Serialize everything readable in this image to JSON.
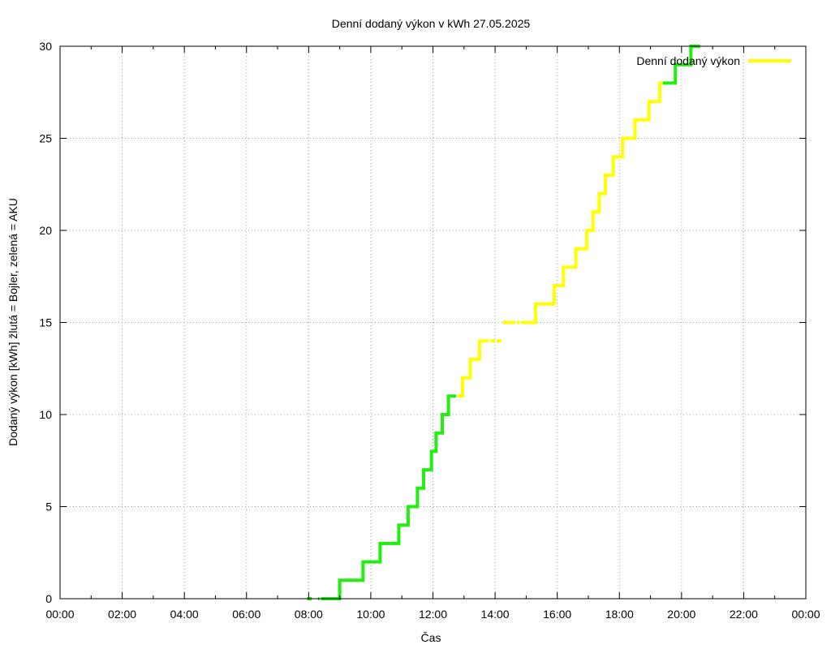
{
  "chart_data": {
    "type": "line",
    "title": "Denní dodaný výkon v kWh 27.05.2025",
    "xlabel": "Čas",
    "ylabel": "Dodaný výkon [kWh]  žlutá = Bojler, zelená = AKU",
    "x_unit": "hours",
    "xlim": [
      0,
      24
    ],
    "ylim": [
      0,
      30
    ],
    "x_ticks": [
      "00:00",
      "02:00",
      "04:00",
      "06:00",
      "08:00",
      "10:00",
      "12:00",
      "14:00",
      "16:00",
      "18:00",
      "20:00",
      "22:00",
      "00:00"
    ],
    "y_ticks": [
      "0",
      "5",
      "10",
      "15",
      "20",
      "25",
      "30"
    ],
    "grid": true,
    "legend": {
      "label": "Denní dodaný výkon",
      "position": "top-right",
      "color": "#ffff00"
    },
    "colors": {
      "yellow": "#ffff00",
      "green": "#22ee11",
      "grid": "#a0a0a0"
    },
    "segments": [
      {
        "color": "green",
        "points": [
          [
            7.95,
            0
          ],
          [
            8.1,
            0
          ]
        ]
      },
      {
        "color": "green",
        "points": [
          [
            8.3,
            0
          ],
          [
            8.35,
            0
          ]
        ]
      },
      {
        "color": "green",
        "points": [
          [
            8.4,
            0
          ],
          [
            9.0,
            0
          ],
          [
            9.0,
            1
          ],
          [
            9.75,
            1
          ],
          [
            9.75,
            2
          ],
          [
            10.3,
            2
          ],
          [
            10.3,
            3
          ],
          [
            10.9,
            3
          ],
          [
            10.9,
            4
          ],
          [
            11.2,
            4
          ],
          [
            11.2,
            5
          ],
          [
            11.5,
            5
          ],
          [
            11.5,
            6
          ],
          [
            11.7,
            6
          ],
          [
            11.7,
            7
          ],
          [
            11.95,
            7
          ],
          [
            11.95,
            8
          ],
          [
            12.1,
            8
          ],
          [
            12.1,
            9
          ],
          [
            12.3,
            9
          ],
          [
            12.3,
            10
          ],
          [
            12.5,
            10
          ],
          [
            12.5,
            11
          ],
          [
            12.75,
            11
          ]
        ]
      },
      {
        "color": "yellow",
        "points": [
          [
            12.8,
            11
          ],
          [
            12.95,
            11
          ],
          [
            12.95,
            12
          ],
          [
            13.2,
            12
          ],
          [
            13.2,
            13
          ],
          [
            13.5,
            13
          ],
          [
            13.5,
            14
          ],
          [
            13.8,
            14
          ]
        ]
      },
      {
        "color": "yellow",
        "points": [
          [
            13.85,
            14
          ],
          [
            14.0,
            14
          ]
        ]
      },
      {
        "color": "yellow",
        "points": [
          [
            14.05,
            14
          ],
          [
            14.2,
            14
          ]
        ]
      },
      {
        "color": "yellow",
        "points": [
          [
            14.25,
            15
          ],
          [
            14.65,
            15
          ]
        ]
      },
      {
        "color": "yellow",
        "points": [
          [
            14.7,
            15
          ],
          [
            14.8,
            15
          ]
        ]
      },
      {
        "color": "yellow",
        "points": [
          [
            14.85,
            15
          ],
          [
            15.3,
            15
          ],
          [
            15.3,
            16
          ],
          [
            15.9,
            16
          ],
          [
            15.9,
            17
          ],
          [
            16.2,
            17
          ],
          [
            16.2,
            18
          ],
          [
            16.6,
            18
          ],
          [
            16.6,
            19
          ],
          [
            16.95,
            19
          ],
          [
            16.95,
            20
          ],
          [
            17.15,
            20
          ],
          [
            17.15,
            21
          ],
          [
            17.35,
            21
          ],
          [
            17.35,
            22
          ],
          [
            17.55,
            22
          ],
          [
            17.55,
            23
          ],
          [
            17.8,
            23
          ],
          [
            17.8,
            24
          ],
          [
            18.1,
            24
          ],
          [
            18.1,
            25
          ],
          [
            18.5,
            25
          ],
          [
            18.5,
            26
          ],
          [
            18.95,
            26
          ],
          [
            18.95,
            27
          ],
          [
            19.3,
            27
          ],
          [
            19.3,
            28
          ],
          [
            19.4,
            28
          ]
        ]
      },
      {
        "color": "green",
        "points": [
          [
            19.4,
            28
          ],
          [
            19.55,
            28
          ],
          [
            19.55,
            28
          ],
          [
            19.8,
            28
          ],
          [
            19.8,
            29
          ],
          [
            20.3,
            29
          ],
          [
            20.3,
            30
          ],
          [
            20.6,
            30
          ]
        ]
      }
    ]
  }
}
